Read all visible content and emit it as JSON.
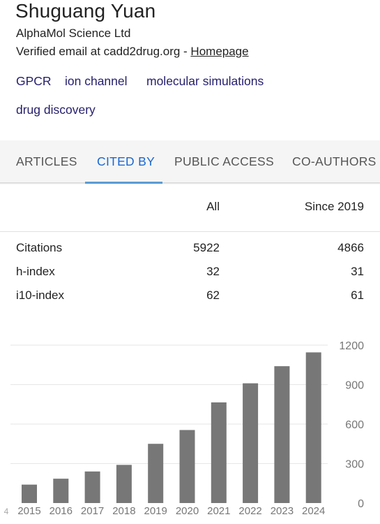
{
  "profile": {
    "name": "Shuguang Yuan",
    "affiliation": "AlphaMol Science Ltd",
    "email_text": "Verified email at cadd2drug.org - ",
    "homepage_label": "Homepage",
    "interests": [
      "GPCR",
      "ion channel",
      "molecular simulations",
      "drug discovery"
    ]
  },
  "tabs": [
    "ARTICLES",
    "CITED BY",
    "PUBLIC ACCESS",
    "CO-AUTHORS"
  ],
  "active_tab": "CITED BY",
  "stats": {
    "headers": {
      "all": "All",
      "since": "Since 2019"
    },
    "rows": [
      {
        "label": "Citations",
        "all": "5922",
        "since": "4866"
      },
      {
        "label": "h-index",
        "all": "32",
        "since": "31"
      },
      {
        "label": "i10-index",
        "all": "62",
        "since": "61"
      }
    ]
  },
  "chart_data": {
    "type": "bar",
    "categories": [
      "2015",
      "2016",
      "2017",
      "2018",
      "2019",
      "2020",
      "2021",
      "2022",
      "2023",
      "2024"
    ],
    "values": [
      140,
      185,
      240,
      290,
      450,
      555,
      765,
      910,
      1040,
      1145
    ],
    "ylim": [
      0,
      1200
    ],
    "yticks": [
      "0",
      "300",
      "600",
      "900",
      "1200"
    ],
    "left_edge_label": "4",
    "bar_color": "#777777",
    "grid": true
  }
}
